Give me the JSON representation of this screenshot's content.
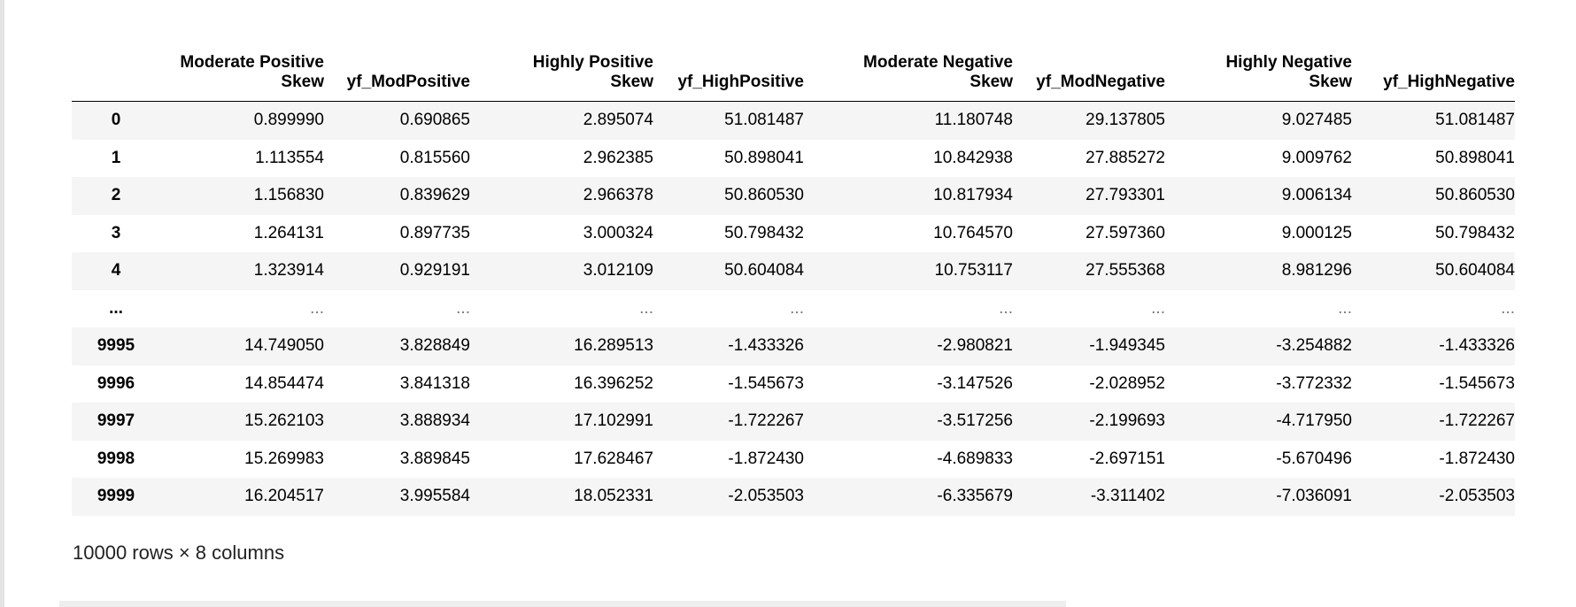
{
  "table": {
    "columns": [
      {
        "line1": "",
        "line2": ""
      },
      {
        "line1": "Moderate Positive",
        "line2": "Skew"
      },
      {
        "line1": "",
        "line2": "yf_ModPositive"
      },
      {
        "line1": "Highly Positive",
        "line2": "Skew"
      },
      {
        "line1": "",
        "line2": "yf_HighPositive"
      },
      {
        "line1": "Moderate Negative",
        "line2": "Skew"
      },
      {
        "line1": "",
        "line2": "yf_ModNegative"
      },
      {
        "line1": "Highly Negative",
        "line2": "Skew"
      },
      {
        "line1": "",
        "line2": "yf_HighNegative"
      }
    ],
    "rows": [
      {
        "index": "0",
        "values": [
          "0.899990",
          "0.690865",
          "2.895074",
          "51.081487",
          "11.180748",
          "29.137805",
          "9.027485",
          "51.081487"
        ]
      },
      {
        "index": "1",
        "values": [
          "1.113554",
          "0.815560",
          "2.962385",
          "50.898041",
          "10.842938",
          "27.885272",
          "9.009762",
          "50.898041"
        ]
      },
      {
        "index": "2",
        "values": [
          "1.156830",
          "0.839629",
          "2.966378",
          "50.860530",
          "10.817934",
          "27.793301",
          "9.006134",
          "50.860530"
        ]
      },
      {
        "index": "3",
        "values": [
          "1.264131",
          "0.897735",
          "3.000324",
          "50.798432",
          "10.764570",
          "27.597360",
          "9.000125",
          "50.798432"
        ]
      },
      {
        "index": "4",
        "values": [
          "1.323914",
          "0.929191",
          "3.012109",
          "50.604084",
          "10.753117",
          "27.555368",
          "8.981296",
          "50.604084"
        ]
      },
      {
        "index": "...",
        "values": [
          "...",
          "...",
          "...",
          "...",
          "...",
          "...",
          "...",
          "..."
        ]
      },
      {
        "index": "9995",
        "values": [
          "14.749050",
          "3.828849",
          "16.289513",
          "-1.433326",
          "-2.980821",
          "-1.949345",
          "-3.254882",
          "-1.433326"
        ]
      },
      {
        "index": "9996",
        "values": [
          "14.854474",
          "3.841318",
          "16.396252",
          "-1.545673",
          "-3.147526",
          "-2.028952",
          "-3.772332",
          "-1.545673"
        ]
      },
      {
        "index": "9997",
        "values": [
          "15.262103",
          "3.888934",
          "17.102991",
          "-1.722267",
          "-3.517256",
          "-2.199693",
          "-4.717950",
          "-1.722267"
        ]
      },
      {
        "index": "9998",
        "values": [
          "15.269983",
          "3.889845",
          "17.628467",
          "-1.872430",
          "-4.689833",
          "-2.697151",
          "-5.670496",
          "-1.872430"
        ]
      },
      {
        "index": "9999",
        "values": [
          "16.204517",
          "3.995584",
          "18.052331",
          "-2.053503",
          "-6.335679",
          "-3.311402",
          "-7.036091",
          "-2.053503"
        ]
      }
    ]
  },
  "shape_text": "10000 rows × 8 columns"
}
